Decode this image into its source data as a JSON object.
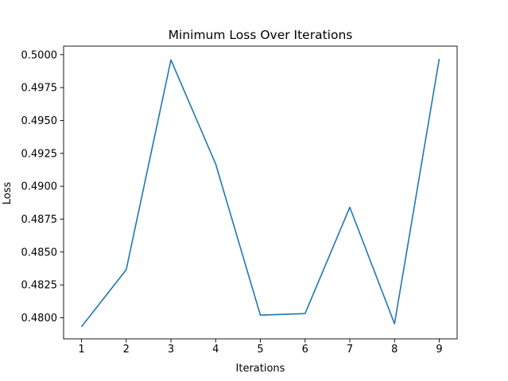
{
  "chart_data": {
    "type": "line",
    "title": "Minimum Loss Over Iterations",
    "xlabel": "Iterations",
    "ylabel": "Loss",
    "x_ticks": [
      "1",
      "2",
      "3",
      "4",
      "5",
      "6",
      "7",
      "8",
      "9"
    ],
    "y_ticks": [
      "0.4800",
      "0.4825",
      "0.4850",
      "0.4875",
      "0.4900",
      "0.4925",
      "0.4950",
      "0.4975",
      "0.5000"
    ],
    "xlim": [
      0.6,
      9.4
    ],
    "ylim": [
      0.4784,
      0.50065
    ],
    "grid": false,
    "series": [
      {
        "color": "#1f77b4",
        "x": [
          1,
          2,
          3,
          4,
          5,
          6,
          7,
          8,
          9
        ],
        "y": [
          0.47932,
          0.48365,
          0.4996,
          0.4917,
          0.4802,
          0.48032,
          0.4884,
          0.47955,
          0.49968
        ]
      }
    ]
  }
}
